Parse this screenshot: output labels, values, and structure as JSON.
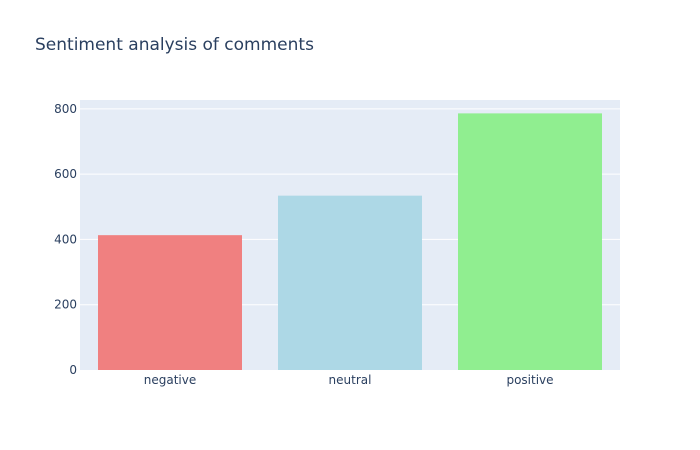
{
  "chart_data": {
    "type": "bar",
    "title": "Sentiment analysis of comments",
    "xlabel": "",
    "ylabel": "",
    "categories": [
      "negative",
      "neutral",
      "positive"
    ],
    "values": [
      413,
      534,
      786
    ],
    "colors": [
      "#f08080",
      "#add8e6",
      "#90ee90"
    ],
    "ylim": [
      0,
      827
    ],
    "yticks": [
      0,
      200,
      400,
      600,
      800
    ],
    "grid": true,
    "legend": "none",
    "plot_background": "#e5ecf6",
    "gridline_color": "#ffffff",
    "text_color": "#2a3f5f"
  }
}
